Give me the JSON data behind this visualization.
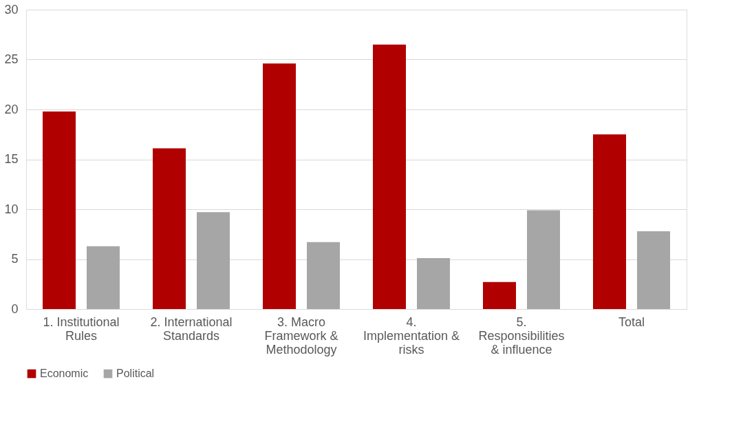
{
  "chart_data": {
    "type": "bar",
    "categories": [
      "1. Institutional Rules",
      "2. International Standards",
      "3. Macro Framework & Methodology",
      "4. Implementation & risks",
      "5. Responsibilities & influence",
      "Total"
    ],
    "series": [
      {
        "name": "Economic",
        "color": "#b00000",
        "values": [
          19.8,
          16.1,
          24.6,
          26.5,
          2.7,
          17.5
        ]
      },
      {
        "name": "Political",
        "color": "#a6a6a6",
        "values": [
          6.3,
          9.7,
          6.7,
          5.1,
          9.9,
          7.8
        ]
      }
    ],
    "ylim": [
      0,
      30
    ],
    "yticks": [
      0,
      5,
      10,
      15,
      20,
      25,
      30
    ],
    "grid": "y",
    "legend": "bottom"
  }
}
